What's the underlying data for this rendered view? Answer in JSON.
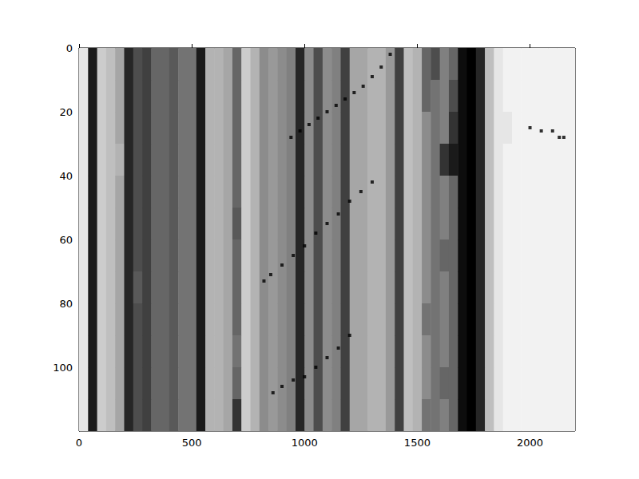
{
  "chart_data": {
    "type": "heatmap",
    "xlim": [
      0,
      2200
    ],
    "xticks": [
      0,
      500,
      1000,
      1500,
      2000
    ],
    "ylim": [
      120,
      0
    ],
    "yticks": [
      0,
      20,
      40,
      60,
      80,
      100
    ],
    "grid": false,
    "color": "#000000",
    "cells": {
      "range": [
        0,
        1
      ],
      "x_edges": [
        0,
        40,
        80,
        120,
        160,
        200,
        240,
        280,
        320,
        360,
        400,
        440,
        480,
        520,
        560,
        600,
        640,
        680,
        720,
        760,
        800,
        840,
        880,
        920,
        960,
        1000,
        1040,
        1080,
        1120,
        1160,
        1200,
        1240,
        1280,
        1320,
        1360,
        1400,
        1440,
        1480,
        1520,
        1560,
        1600,
        1640,
        1680,
        1720,
        1760,
        1800,
        1840,
        1880,
        1920,
        1960,
        2000,
        2040,
        2080,
        2120,
        2160,
        2200
      ],
      "y_edges": [
        0,
        10,
        20,
        30,
        40,
        50,
        60,
        70,
        80,
        90,
        100,
        110,
        120
      ],
      "values": [
        [
          0.1,
          0.9,
          0.2,
          0.25,
          0.35,
          0.85,
          0.7,
          0.75,
          0.6,
          0.6,
          0.65,
          0.55,
          0.55,
          0.9,
          0.3,
          0.3,
          0.35,
          0.6,
          0.2,
          0.3,
          0.45,
          0.4,
          0.45,
          0.5,
          0.85,
          0.45,
          0.7,
          0.45,
          0.5,
          0.75,
          0.35,
          0.35,
          0.3,
          0.3,
          0.4,
          0.75,
          0.25,
          0.3,
          0.6,
          0.7,
          0.5,
          0.6,
          0.95,
          1.0,
          0.85,
          0.25,
          0.1,
          0.05,
          0.05,
          0.05,
          0.05,
          0.05,
          0.05,
          0.05,
          0.05
        ],
        [
          0.1,
          0.9,
          0.2,
          0.25,
          0.35,
          0.85,
          0.7,
          0.75,
          0.6,
          0.6,
          0.65,
          0.55,
          0.55,
          0.9,
          0.3,
          0.3,
          0.35,
          0.6,
          0.2,
          0.3,
          0.45,
          0.4,
          0.45,
          0.5,
          0.85,
          0.45,
          0.7,
          0.45,
          0.5,
          0.75,
          0.35,
          0.35,
          0.3,
          0.3,
          0.4,
          0.75,
          0.25,
          0.3,
          0.6,
          0.55,
          0.5,
          0.7,
          0.95,
          1.0,
          0.85,
          0.25,
          0.1,
          0.05,
          0.05,
          0.05,
          0.05,
          0.05,
          0.05,
          0.05,
          0.05
        ],
        [
          0.1,
          0.9,
          0.2,
          0.25,
          0.35,
          0.85,
          0.7,
          0.75,
          0.6,
          0.6,
          0.65,
          0.55,
          0.55,
          0.9,
          0.3,
          0.3,
          0.35,
          0.6,
          0.2,
          0.3,
          0.45,
          0.4,
          0.45,
          0.5,
          0.85,
          0.45,
          0.7,
          0.45,
          0.5,
          0.75,
          0.35,
          0.35,
          0.3,
          0.3,
          0.4,
          0.75,
          0.25,
          0.3,
          0.45,
          0.55,
          0.5,
          0.8,
          0.95,
          1.0,
          0.85,
          0.25,
          0.1,
          0.1,
          0.05,
          0.05,
          0.05,
          0.05,
          0.05,
          0.05,
          0.05
        ],
        [
          0.1,
          0.9,
          0.2,
          0.25,
          0.3,
          0.85,
          0.7,
          0.75,
          0.6,
          0.6,
          0.65,
          0.55,
          0.55,
          0.9,
          0.3,
          0.3,
          0.35,
          0.6,
          0.2,
          0.3,
          0.45,
          0.4,
          0.45,
          0.5,
          0.85,
          0.45,
          0.7,
          0.45,
          0.5,
          0.75,
          0.35,
          0.35,
          0.3,
          0.3,
          0.4,
          0.75,
          0.25,
          0.3,
          0.45,
          0.55,
          0.8,
          0.9,
          0.95,
          1.0,
          0.85,
          0.25,
          0.1,
          0.05,
          0.05,
          0.05,
          0.05,
          0.05,
          0.05,
          0.05,
          0.05
        ],
        [
          0.1,
          0.9,
          0.2,
          0.25,
          0.35,
          0.85,
          0.7,
          0.75,
          0.6,
          0.6,
          0.65,
          0.55,
          0.55,
          0.9,
          0.3,
          0.3,
          0.35,
          0.6,
          0.2,
          0.3,
          0.45,
          0.4,
          0.45,
          0.5,
          0.85,
          0.45,
          0.7,
          0.45,
          0.5,
          0.75,
          0.35,
          0.35,
          0.3,
          0.3,
          0.4,
          0.75,
          0.25,
          0.3,
          0.45,
          0.55,
          0.5,
          0.6,
          0.95,
          1.0,
          0.85,
          0.25,
          0.1,
          0.05,
          0.05,
          0.05,
          0.05,
          0.05,
          0.05,
          0.05,
          0.05
        ],
        [
          0.1,
          0.9,
          0.2,
          0.25,
          0.35,
          0.85,
          0.7,
          0.75,
          0.6,
          0.6,
          0.65,
          0.55,
          0.55,
          0.9,
          0.3,
          0.3,
          0.35,
          0.65,
          0.2,
          0.3,
          0.45,
          0.4,
          0.45,
          0.5,
          0.85,
          0.45,
          0.7,
          0.45,
          0.5,
          0.75,
          0.35,
          0.35,
          0.3,
          0.3,
          0.4,
          0.75,
          0.25,
          0.3,
          0.45,
          0.55,
          0.5,
          0.6,
          0.95,
          1.0,
          0.85,
          0.25,
          0.1,
          0.05,
          0.05,
          0.05,
          0.05,
          0.05,
          0.05,
          0.05,
          0.05
        ],
        [
          0.1,
          0.9,
          0.2,
          0.25,
          0.35,
          0.85,
          0.7,
          0.75,
          0.6,
          0.6,
          0.65,
          0.55,
          0.55,
          0.9,
          0.3,
          0.3,
          0.35,
          0.6,
          0.2,
          0.3,
          0.45,
          0.4,
          0.45,
          0.5,
          0.85,
          0.45,
          0.7,
          0.45,
          0.5,
          0.75,
          0.35,
          0.35,
          0.3,
          0.3,
          0.4,
          0.75,
          0.25,
          0.3,
          0.45,
          0.55,
          0.6,
          0.6,
          0.95,
          1.0,
          0.85,
          0.25,
          0.1,
          0.05,
          0.05,
          0.05,
          0.05,
          0.05,
          0.05,
          0.05,
          0.05
        ],
        [
          0.1,
          0.9,
          0.2,
          0.25,
          0.35,
          0.85,
          0.65,
          0.75,
          0.6,
          0.6,
          0.65,
          0.55,
          0.55,
          0.9,
          0.3,
          0.3,
          0.35,
          0.6,
          0.2,
          0.3,
          0.45,
          0.4,
          0.45,
          0.5,
          0.85,
          0.45,
          0.7,
          0.45,
          0.5,
          0.75,
          0.35,
          0.35,
          0.3,
          0.3,
          0.4,
          0.75,
          0.25,
          0.3,
          0.45,
          0.55,
          0.5,
          0.6,
          0.95,
          1.0,
          0.85,
          0.25,
          0.1,
          0.05,
          0.05,
          0.05,
          0.05,
          0.05,
          0.05,
          0.05,
          0.05
        ],
        [
          0.1,
          0.9,
          0.2,
          0.25,
          0.35,
          0.85,
          0.7,
          0.75,
          0.6,
          0.6,
          0.65,
          0.55,
          0.55,
          0.9,
          0.3,
          0.3,
          0.35,
          0.6,
          0.2,
          0.3,
          0.45,
          0.4,
          0.45,
          0.5,
          0.85,
          0.45,
          0.7,
          0.45,
          0.5,
          0.75,
          0.35,
          0.35,
          0.3,
          0.3,
          0.4,
          0.75,
          0.25,
          0.3,
          0.55,
          0.55,
          0.5,
          0.6,
          0.95,
          1.0,
          0.85,
          0.25,
          0.1,
          0.05,
          0.05,
          0.05,
          0.05,
          0.05,
          0.05,
          0.05,
          0.05
        ],
        [
          0.1,
          0.9,
          0.2,
          0.25,
          0.35,
          0.85,
          0.7,
          0.75,
          0.6,
          0.6,
          0.65,
          0.55,
          0.55,
          0.9,
          0.3,
          0.3,
          0.35,
          0.55,
          0.2,
          0.3,
          0.45,
          0.4,
          0.45,
          0.5,
          0.85,
          0.45,
          0.7,
          0.45,
          0.5,
          0.75,
          0.35,
          0.35,
          0.3,
          0.3,
          0.4,
          0.75,
          0.25,
          0.3,
          0.45,
          0.55,
          0.5,
          0.6,
          0.95,
          1.0,
          0.85,
          0.25,
          0.1,
          0.05,
          0.05,
          0.05,
          0.05,
          0.05,
          0.05,
          0.05,
          0.05
        ],
        [
          0.1,
          0.9,
          0.2,
          0.25,
          0.35,
          0.85,
          0.7,
          0.75,
          0.6,
          0.6,
          0.65,
          0.55,
          0.55,
          0.9,
          0.3,
          0.3,
          0.35,
          0.6,
          0.2,
          0.3,
          0.45,
          0.4,
          0.45,
          0.5,
          0.85,
          0.45,
          0.7,
          0.45,
          0.5,
          0.75,
          0.35,
          0.35,
          0.3,
          0.3,
          0.4,
          0.75,
          0.25,
          0.3,
          0.45,
          0.55,
          0.6,
          0.6,
          0.95,
          1.0,
          0.85,
          0.25,
          0.1,
          0.05,
          0.05,
          0.05,
          0.05,
          0.05,
          0.05,
          0.05,
          0.05
        ],
        [
          0.1,
          0.9,
          0.2,
          0.25,
          0.35,
          0.85,
          0.7,
          0.75,
          0.6,
          0.6,
          0.65,
          0.55,
          0.55,
          0.9,
          0.3,
          0.3,
          0.35,
          0.8,
          0.2,
          0.3,
          0.45,
          0.4,
          0.45,
          0.5,
          0.85,
          0.45,
          0.7,
          0.45,
          0.5,
          0.75,
          0.35,
          0.35,
          0.3,
          0.3,
          0.4,
          0.75,
          0.25,
          0.3,
          0.55,
          0.55,
          0.5,
          0.6,
          0.95,
          1.0,
          0.85,
          0.25,
          0.1,
          0.05,
          0.05,
          0.05,
          0.05,
          0.05,
          0.05,
          0.05,
          0.05
        ]
      ]
    },
    "dots": {
      "color": "#000000",
      "marker": "square",
      "x": [
        1380,
        1340,
        1300,
        1260,
        1220,
        1180,
        1140,
        1100,
        1060,
        1020,
        980,
        940,
        1300,
        1250,
        1200,
        1150,
        1100,
        1050,
        1000,
        950,
        900,
        850,
        820,
        1200,
        1150,
        1100,
        1050,
        1000,
        950,
        900,
        860,
        2000,
        2050,
        2100,
        2130,
        2150
      ],
      "y": [
        2,
        6,
        9,
        12,
        14,
        16,
        18,
        20,
        22,
        24,
        26,
        28,
        42,
        45,
        48,
        52,
        55,
        58,
        62,
        65,
        68,
        71,
        73,
        90,
        94,
        97,
        100,
        103,
        104,
        106,
        108,
        25,
        26,
        26,
        28,
        28
      ]
    }
  }
}
